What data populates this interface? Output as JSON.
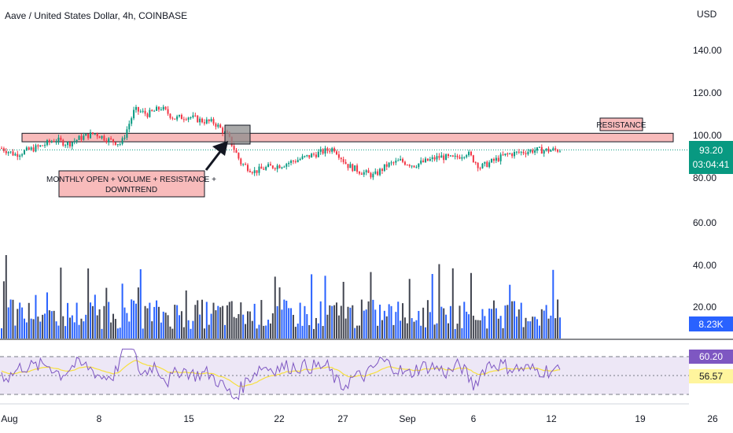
{
  "header": {
    "title": "Aave / United States Dollar, 4h, COINBASE",
    "currency": "USD"
  },
  "colors": {
    "up": "#089981",
    "down": "#f23645",
    "volume": "#2962ff",
    "volume_dark": "#434651",
    "resistance_fill": "#f8bbbb",
    "rsi_line": "#7e57c2",
    "rsi_ma": "#f7e03f",
    "rsi_band": "#ede7f6",
    "price_badge": "#089981",
    "rsi_badge": "#7e57c2",
    "rsi_ma_badge": "#fff59d"
  },
  "price_axis": {
    "ticks": [
      "140.00",
      "120.00",
      "100.00",
      "80.00",
      "60.00",
      "40.00",
      "20.00"
    ],
    "tick_values": [
      140,
      120,
      100,
      80,
      60,
      40,
      20
    ]
  },
  "badges": {
    "last_price": "93.20",
    "countdown": "03:04:41",
    "volume": "8.23K",
    "rsi": "60.20",
    "rsi_ma": "56.57"
  },
  "time_axis": {
    "labels": [
      "Aug",
      "8",
      "15",
      "22",
      "27",
      "Sep",
      "6",
      "12",
      "19",
      "26"
    ]
  },
  "annotations": {
    "resistance_label": "RESISTANCE",
    "monthly_note_line1": "MONTHLY OPEN + VOLUME + RESISTANCE +",
    "monthly_note_line2": "DOWNTREND"
  },
  "chart_data": {
    "type": "candlestick",
    "symbol": "AAVE/USD",
    "interval": "4h",
    "exchange": "COINBASE",
    "ylim": [
      8,
      150
    ],
    "resistance_zone": [
      97,
      101
    ],
    "last_price": 93.2,
    "close_path": [
      {
        "x": "Aug 1",
        "y": 94
      },
      {
        "x": "Aug 2",
        "y": 91
      },
      {
        "x": "Aug 3",
        "y": 93
      },
      {
        "x": "Aug 4",
        "y": 95
      },
      {
        "x": "Aug 5",
        "y": 98
      },
      {
        "x": "Aug 6",
        "y": 96
      },
      {
        "x": "Aug 7",
        "y": 99
      },
      {
        "x": "Aug 8",
        "y": 101
      },
      {
        "x": "Aug 9",
        "y": 98
      },
      {
        "x": "Aug 10",
        "y": 96
      },
      {
        "x": "Aug 11",
        "y": 112
      },
      {
        "x": "Aug 12",
        "y": 110
      },
      {
        "x": "Aug 13",
        "y": 113
      },
      {
        "x": "Aug 14",
        "y": 108
      },
      {
        "x": "Aug 15",
        "y": 109
      },
      {
        "x": "Aug 16",
        "y": 107
      },
      {
        "x": "Aug 17",
        "y": 106
      },
      {
        "x": "Aug 18",
        "y": 100
      },
      {
        "x": "Aug 19",
        "y": 87
      },
      {
        "x": "Aug 20",
        "y": 83
      },
      {
        "x": "Aug 21",
        "y": 85
      },
      {
        "x": "Aug 22",
        "y": 86
      },
      {
        "x": "Aug 23",
        "y": 88
      },
      {
        "x": "Aug 24",
        "y": 90
      },
      {
        "x": "Aug 25",
        "y": 92
      },
      {
        "x": "Aug 26",
        "y": 94
      },
      {
        "x": "Aug 27",
        "y": 86
      },
      {
        "x": "Aug 28",
        "y": 83
      },
      {
        "x": "Aug 29",
        "y": 81
      },
      {
        "x": "Aug 30",
        "y": 86
      },
      {
        "x": "Aug 31",
        "y": 88
      },
      {
        "x": "Sep 1",
        "y": 86
      },
      {
        "x": "Sep 2",
        "y": 88
      },
      {
        "x": "Sep 3",
        "y": 90
      },
      {
        "x": "Sep 4",
        "y": 89
      },
      {
        "x": "Sep 5",
        "y": 92
      },
      {
        "x": "Sep 6",
        "y": 85
      },
      {
        "x": "Sep 7",
        "y": 88
      },
      {
        "x": "Sep 8",
        "y": 91
      },
      {
        "x": "Sep 9",
        "y": 92
      },
      {
        "x": "Sep 10",
        "y": 93
      },
      {
        "x": "Sep 11",
        "y": 93
      },
      {
        "x": "Sep 12",
        "y": 93.2
      }
    ],
    "volume_last": "8.23K",
    "rsi": {
      "value": 60.2,
      "ma": 56.57,
      "upper": 70,
      "middle": 50,
      "lower": 30
    },
    "annotations": [
      "RESISTANCE",
      "MONTHLY OPEN + VOLUME + RESISTANCE + DOWNTREND"
    ]
  }
}
